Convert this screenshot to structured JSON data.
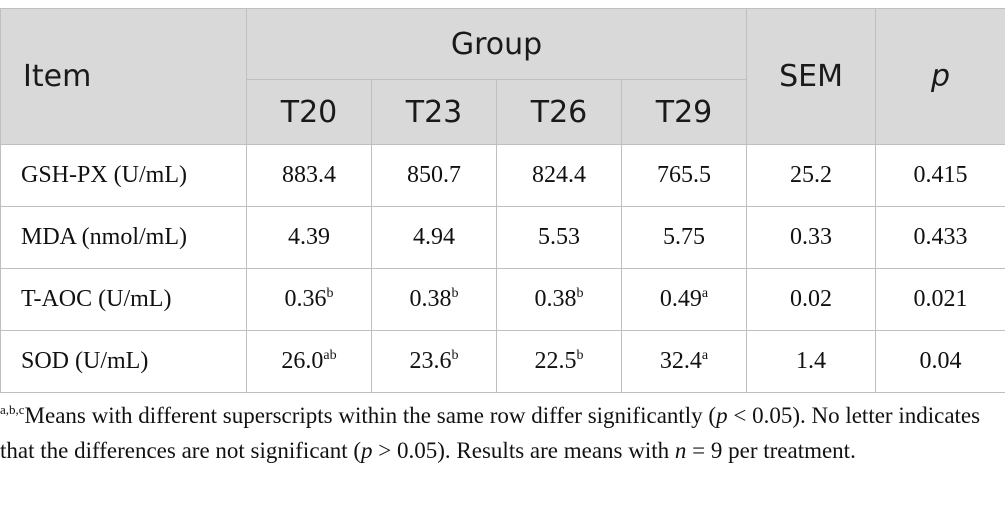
{
  "table": {
    "header": {
      "item": "Item",
      "group": "Group",
      "sem": "SEM",
      "p": "p",
      "groups": [
        "T20",
        "T23",
        "T26",
        "T29"
      ]
    },
    "rows": [
      {
        "label": "GSH-PX (U/mL)",
        "values": [
          {
            "value": "883.4",
            "sup": ""
          },
          {
            "value": "850.7",
            "sup": ""
          },
          {
            "value": "824.4",
            "sup": ""
          },
          {
            "value": "765.5",
            "sup": ""
          }
        ],
        "sem": "25.2",
        "p": "0.415"
      },
      {
        "label": "MDA (nmol/mL)",
        "values": [
          {
            "value": "4.39",
            "sup": ""
          },
          {
            "value": "4.94",
            "sup": ""
          },
          {
            "value": "5.53",
            "sup": ""
          },
          {
            "value": "5.75",
            "sup": ""
          }
        ],
        "sem": "0.33",
        "p": "0.433"
      },
      {
        "label": "T-AOC (U/mL)",
        "values": [
          {
            "value": "0.36",
            "sup": "b"
          },
          {
            "value": "0.38",
            "sup": "b"
          },
          {
            "value": "0.38",
            "sup": "b"
          },
          {
            "value": "0.49",
            "sup": "a"
          }
        ],
        "sem": "0.02",
        "p": "0.021"
      },
      {
        "label": "SOD (U/mL)",
        "values": [
          {
            "value": "26.0",
            "sup": "ab"
          },
          {
            "value": "23.6",
            "sup": "b"
          },
          {
            "value": "22.5",
            "sup": "b"
          },
          {
            "value": "32.4",
            "sup": "a"
          }
        ],
        "sem": "1.4",
        "p": "0.04"
      }
    ]
  },
  "footnote": {
    "sup": "a,b,c",
    "t1": "Means with different superscripts within the same row differ significantly (",
    "p1": "p",
    "t2": " < 0.05). No letter indicates that the differences are not significant (",
    "p2": "p",
    "t3": " > 0.05). Results are means with ",
    "n": "n",
    "t4": " = 9 per treatment."
  }
}
